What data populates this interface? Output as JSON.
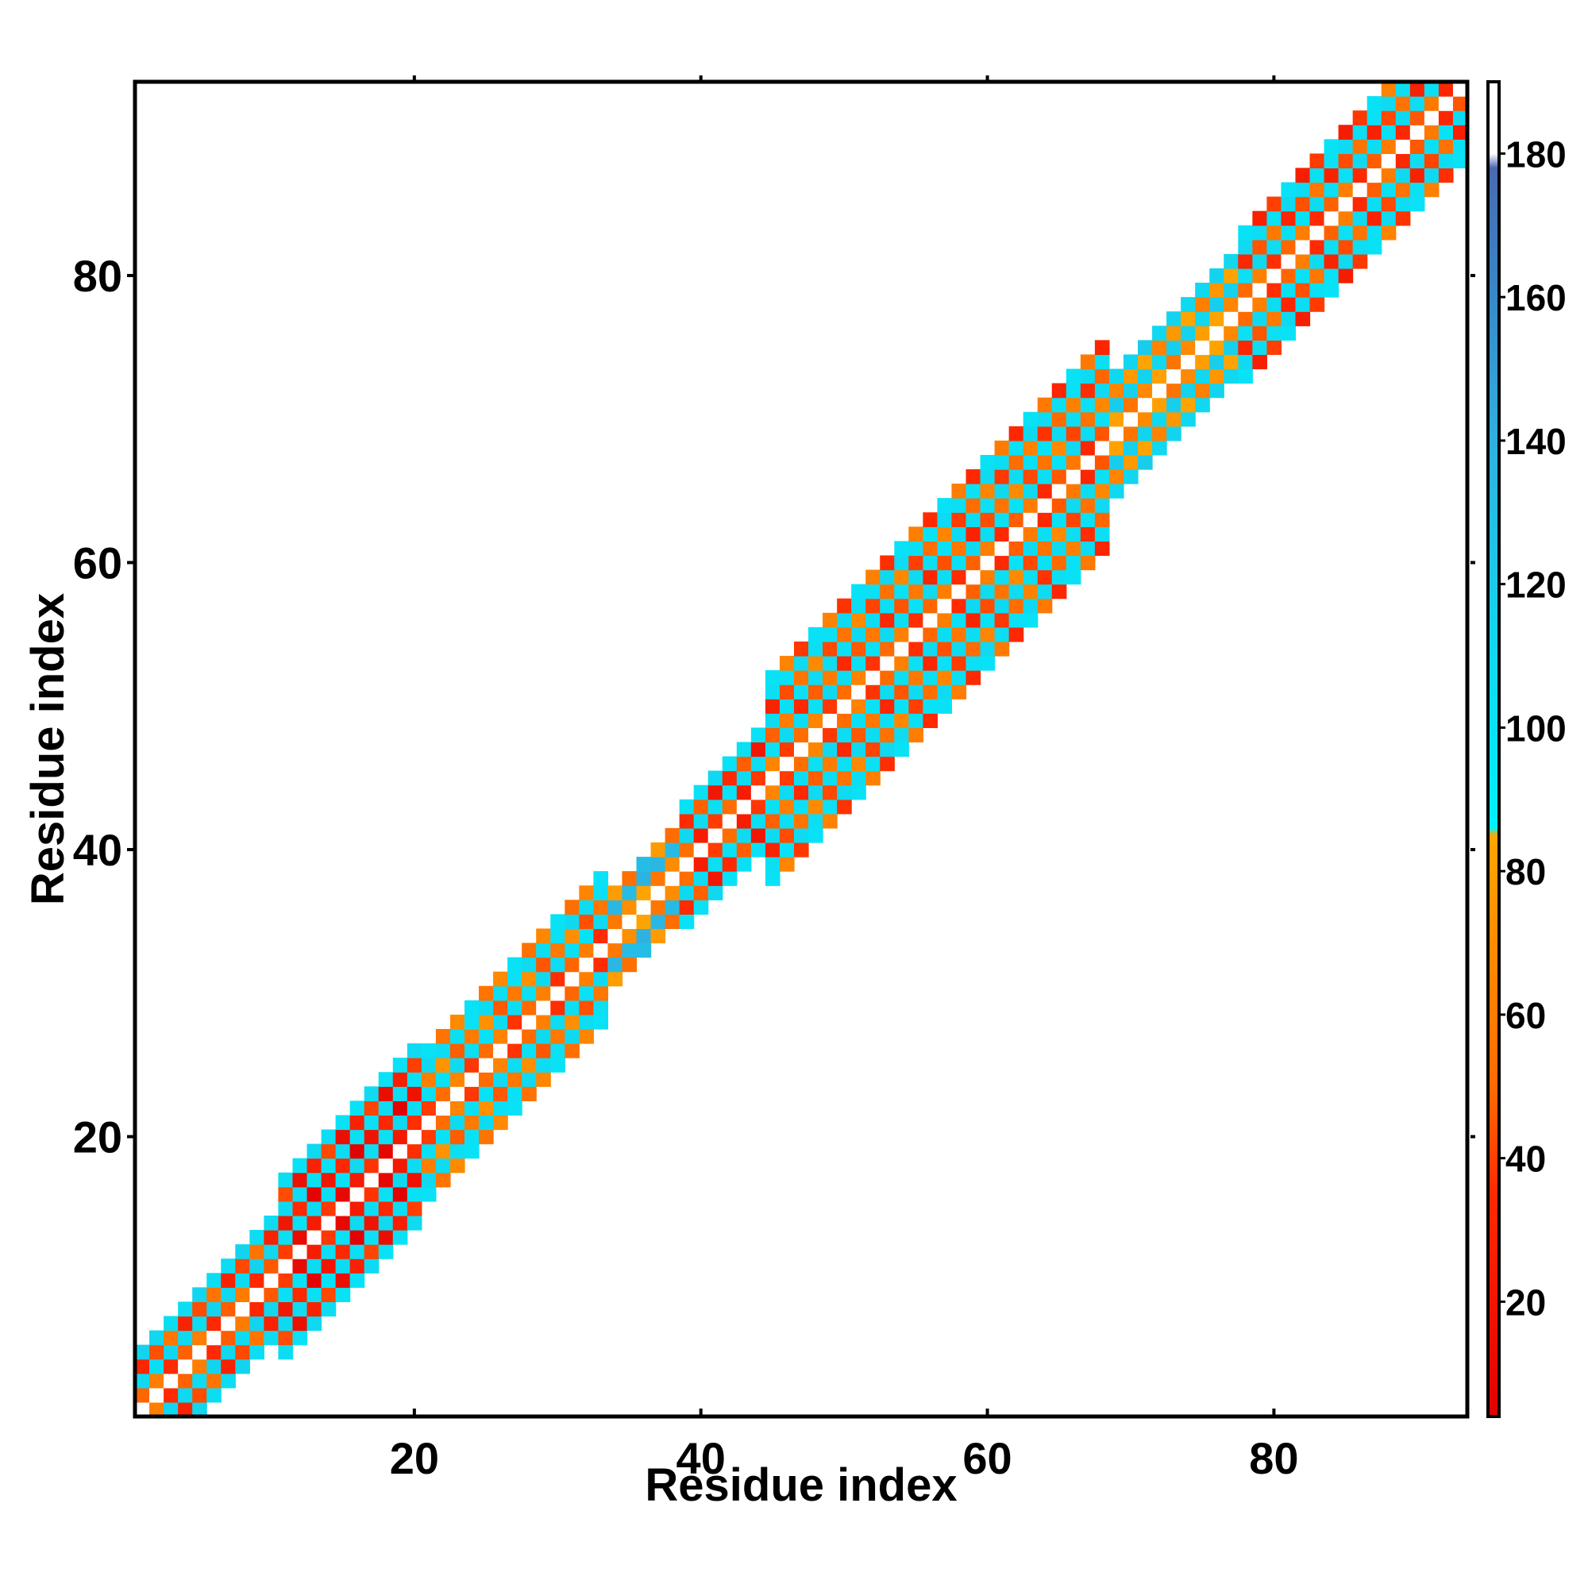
{
  "chart_data": {
    "type": "heatmap",
    "title": "",
    "xlabel": "Residue index",
    "ylabel": "Residue index",
    "xlim": [
      0.5,
      93.5
    ],
    "ylim": [
      0.5,
      93.5
    ],
    "x_ticks": [
      20,
      40,
      60,
      80
    ],
    "y_ticks": [
      20,
      40,
      60,
      80
    ],
    "x_tick_labels": [
      "20",
      "40",
      "60",
      "80"
    ],
    "y_tick_labels": [
      "20",
      "40",
      "60",
      "80"
    ],
    "colorbar": {
      "range": [
        4,
        190
      ],
      "ticks": [
        20,
        40,
        60,
        80,
        100,
        120,
        140,
        160,
        180
      ],
      "tick_labels": [
        "20",
        "40",
        "60",
        "80",
        "100",
        "120",
        "140",
        "160",
        "180"
      ],
      "stops": [
        {
          "value": 4,
          "color": "#e00000"
        },
        {
          "value": 35,
          "color": "#ff2a00"
        },
        {
          "value": 50,
          "color": "#ff6a00"
        },
        {
          "value": 70,
          "color": "#ff8c00"
        },
        {
          "value": 85,
          "color": "#ffa500"
        },
        {
          "value": 86,
          "color": "#00f0ff"
        },
        {
          "value": 110,
          "color": "#10d8f0"
        },
        {
          "value": 140,
          "color": "#30b0e0"
        },
        {
          "value": 160,
          "color": "#3888c8"
        },
        {
          "value": 178,
          "color": "#4a6ab0"
        },
        {
          "value": 180,
          "color": "#ffffff"
        },
        {
          "value": 190,
          "color": "#ffffff"
        }
      ]
    },
    "note": "Residue-pair matrix, band around the diagonal; each square is one residue pair (i, j), value from colour scale",
    "segments": [
      {
        "start": 1,
        "end": 10,
        "width": 4,
        "level": 40,
        "alt": 105
      },
      {
        "start": 11,
        "end": 20,
        "width": 6,
        "level": 20,
        "alt": 100
      },
      {
        "start": 21,
        "end": 33,
        "width": 5,
        "level": 50,
        "alt": 100
      },
      {
        "start": 34,
        "end": 38,
        "width": 3,
        "level": 60,
        "alt": 130
      },
      {
        "start": 39,
        "end": 44,
        "width": 4,
        "level": 30,
        "alt": 100
      },
      {
        "start": 45,
        "end": 68,
        "width": 7,
        "level": 45,
        "alt": 100
      },
      {
        "start": 69,
        "end": 77,
        "width": 4,
        "level": 70,
        "alt": 110
      },
      {
        "start": 78,
        "end": 93,
        "width": 5,
        "level": 40,
        "alt": 100
      }
    ]
  }
}
